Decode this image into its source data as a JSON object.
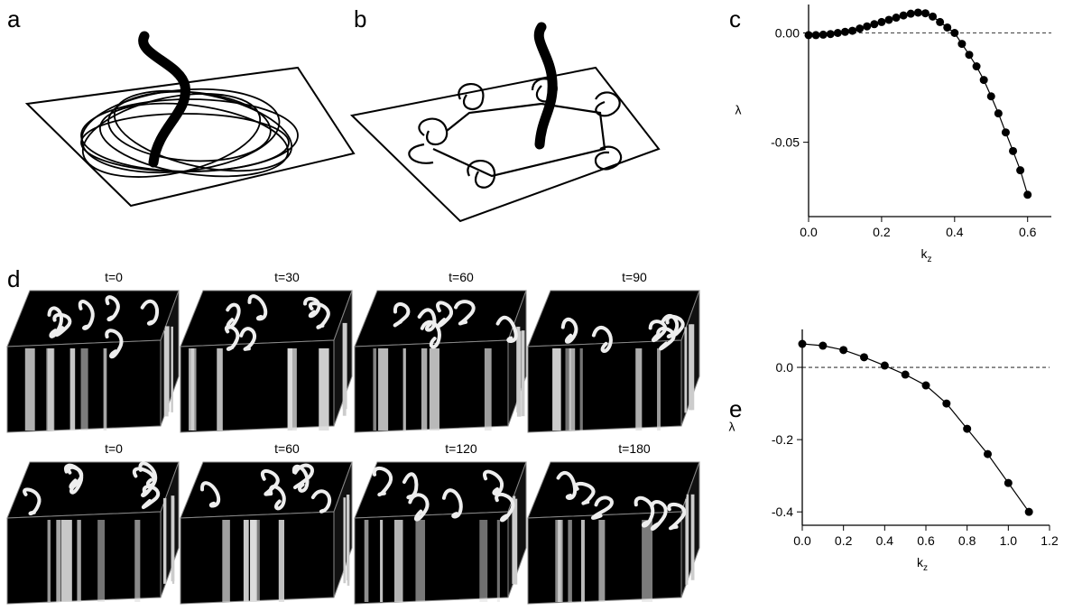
{
  "panel_labels": [
    "a",
    "b",
    "c",
    "d",
    "e"
  ],
  "time_labels": [
    "t=0",
    "t=30",
    "t=60",
    "t=90",
    "t=0",
    "t=60",
    "t=120",
    "t=180"
  ],
  "chart_data": [
    {
      "type": "line",
      "markers": true,
      "color": "#000000",
      "x": [
        0,
        0.02,
        0.04,
        0.06,
        0.08,
        0.1,
        0.12,
        0.14,
        0.16,
        0.18,
        0.2,
        0.22,
        0.24,
        0.26,
        0.28,
        0.3,
        0.32,
        0.34,
        0.36,
        0.38,
        0.4,
        0.42,
        0.44,
        0.46,
        0.48,
        0.5,
        0.52,
        0.54,
        0.56,
        0.58,
        0.6
      ],
      "values": [
        -0.001,
        -0.001,
        -0.0008,
        -0.0005,
        0,
        0.0005,
        0.001,
        0.002,
        0.003,
        0.004,
        0.005,
        0.006,
        0.007,
        0.008,
        0.0088,
        0.0093,
        0.009,
        0.0075,
        0.005,
        0.0025,
        0,
        -0.005,
        -0.01,
        -0.0153,
        -0.0215,
        -0.029,
        -0.0368,
        -0.0455,
        -0.054,
        -0.0628,
        -0.074
      ],
      "xlim": [
        0,
        0.665
      ],
      "ylim": [
        -0.084,
        0.013
      ],
      "xticks": [
        {
          "value": 0,
          "label": "0.0"
        },
        0.2,
        0.4,
        0.6
      ],
      "yticks": [
        {
          "value": 0,
          "label": "0.00"
        },
        {
          "value": -0.05,
          "label": "-0.05"
        }
      ],
      "hline": 0,
      "ylabel": "λ",
      "xlabel": "k",
      "xlabel_subscript": "z"
    },
    {
      "type": "line",
      "markers": true,
      "color": "#000000",
      "x": [
        0,
        0.1,
        0.2,
        0.3,
        0.4,
        0.5,
        0.6,
        0.7,
        0.8,
        0.9,
        1.0,
        1.1
      ],
      "values": [
        0.065,
        0.06,
        0.048,
        0.028,
        0.005,
        -0.02,
        -0.05,
        -0.1,
        -0.17,
        -0.24,
        -0.32,
        -0.4
      ],
      "xlim": [
        0,
        1.2
      ],
      "ylim": [
        -0.437,
        0.105
      ],
      "xticks": [
        {
          "value": 0,
          "label": "0.0"
        },
        0.2,
        0.4,
        0.6,
        0.8,
        {
          "value": 1,
          "label": "1.0"
        },
        1.2
      ],
      "yticks": [
        {
          "value": 0,
          "label": "0.0"
        },
        -0.2,
        -0.4
      ],
      "hline": 0,
      "ylabel": "λ",
      "xlabel": "k",
      "xlabel_subscript": "z"
    }
  ]
}
